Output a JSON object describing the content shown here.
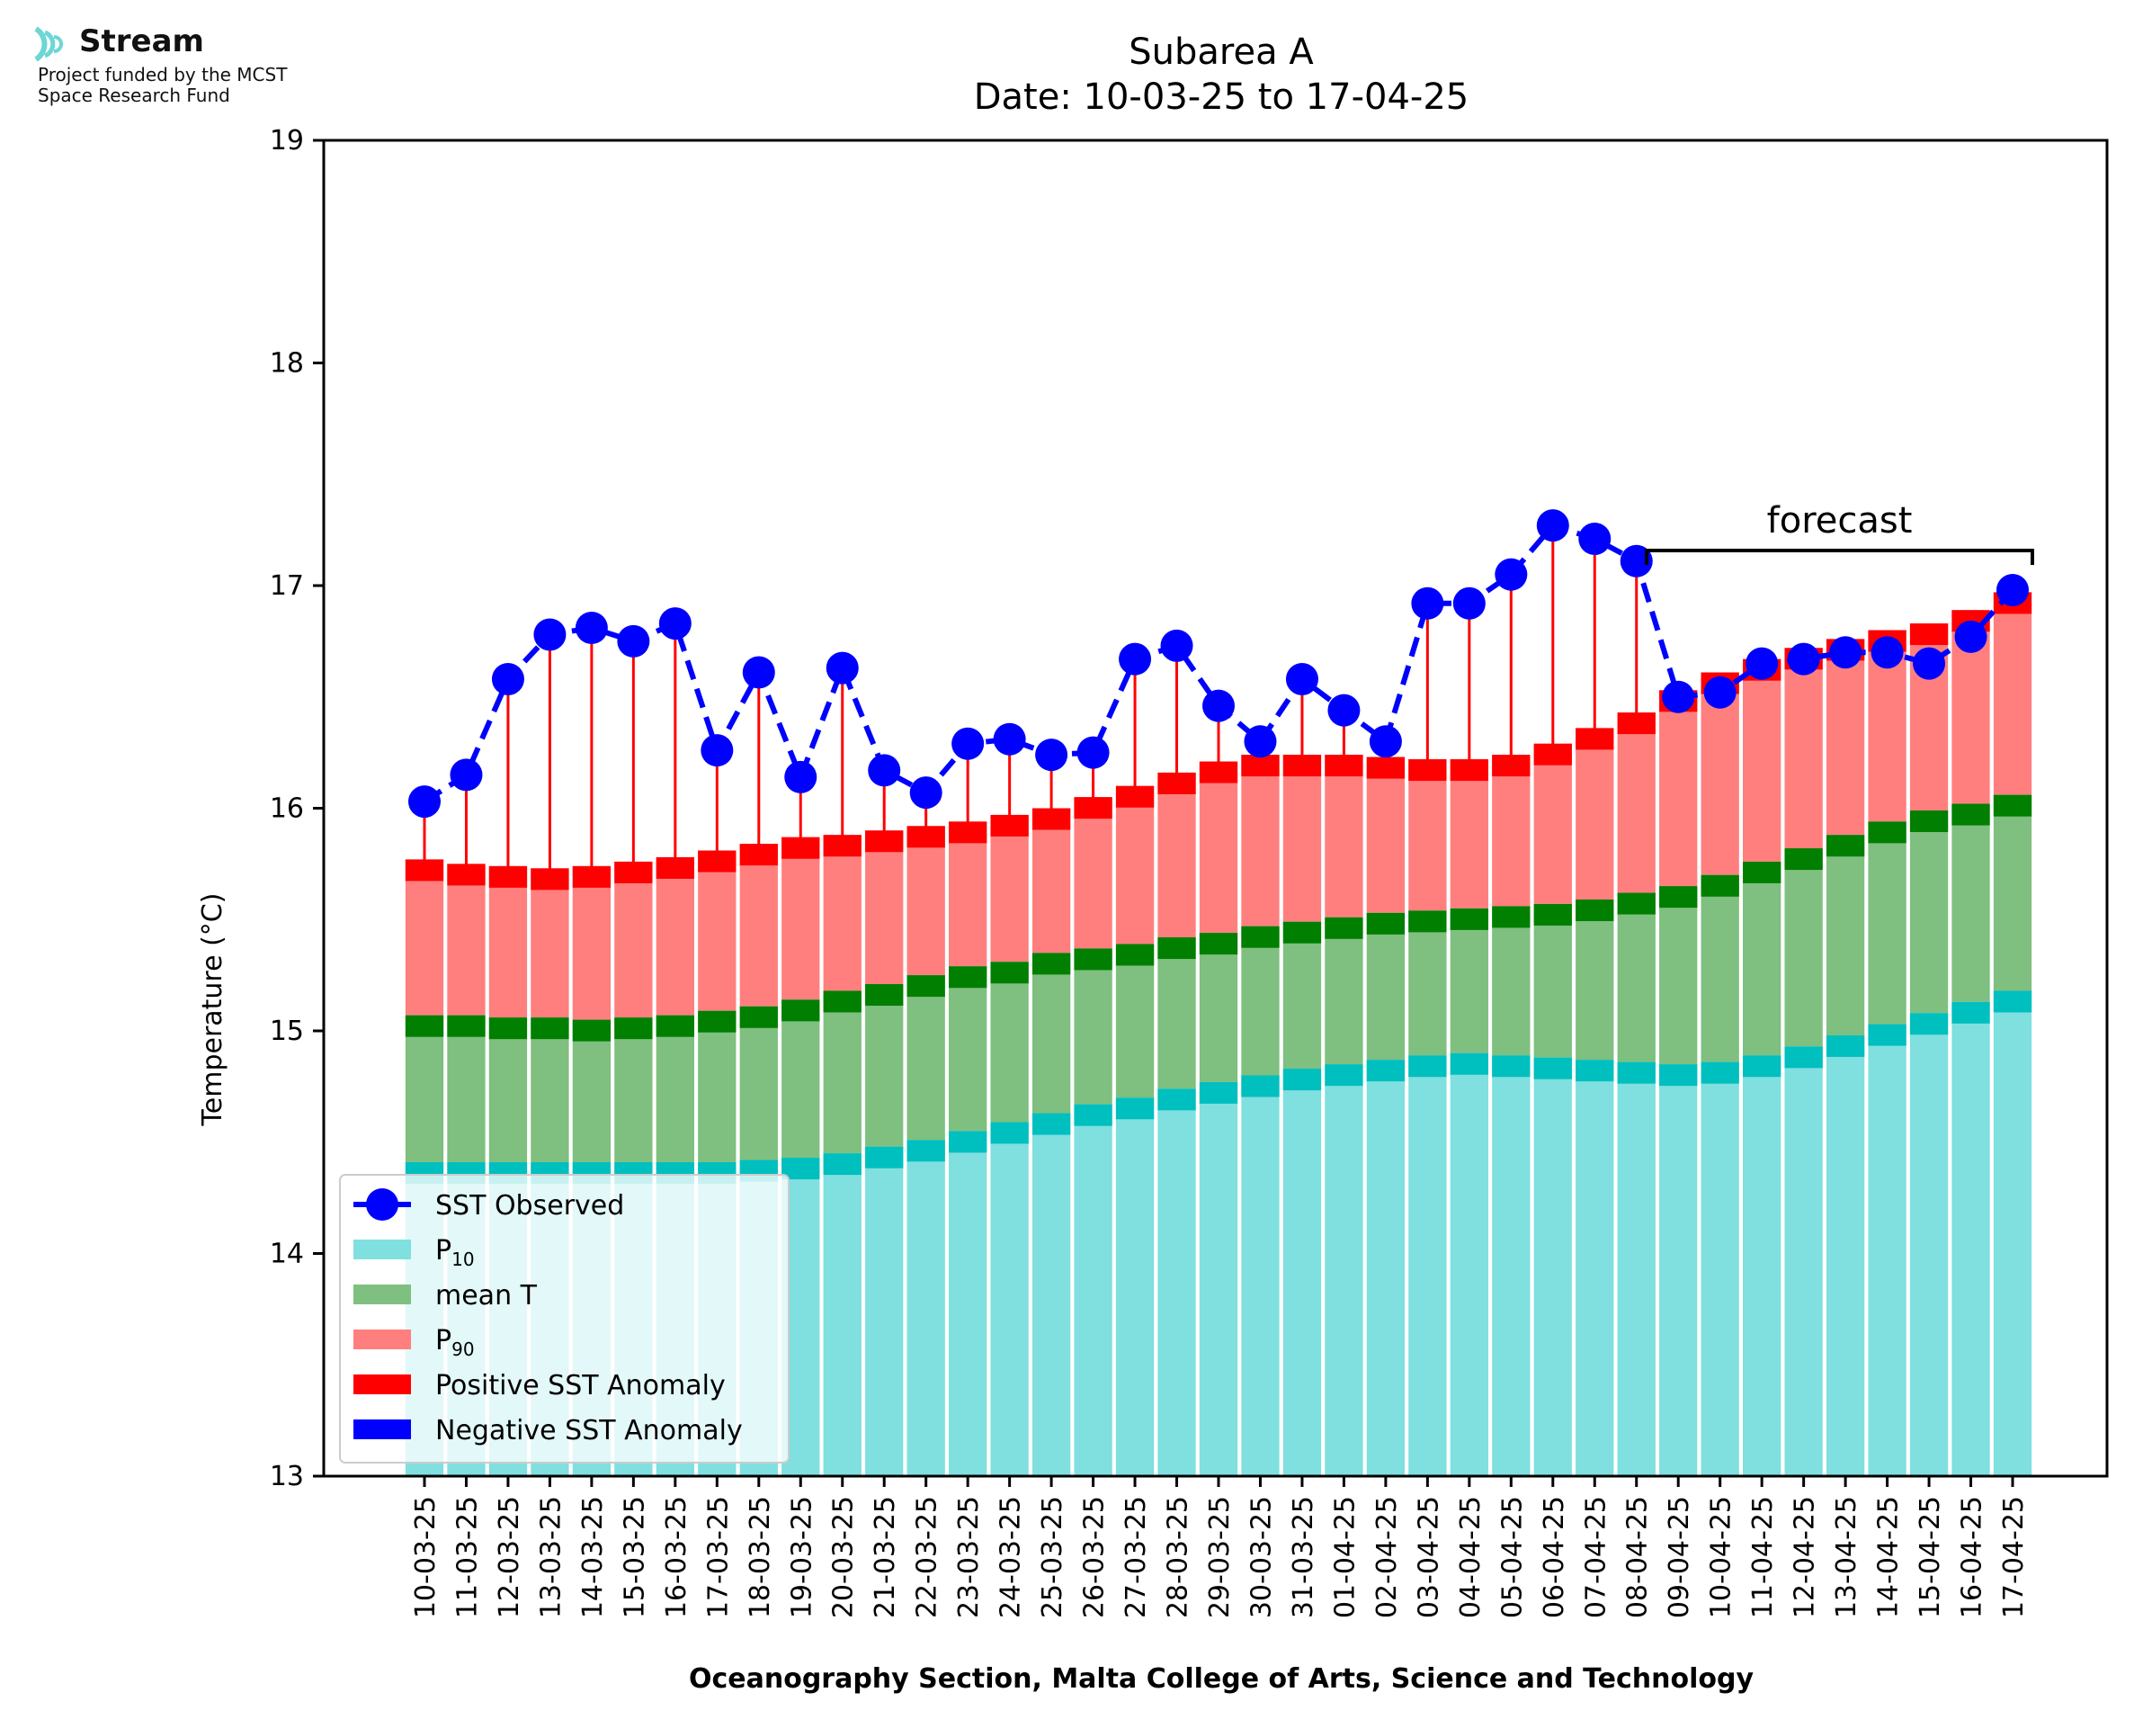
{
  "logo": {
    "brand": "Stream",
    "line1": "Project funded by the MCST",
    "line2": "Space Research Fund"
  },
  "chart_data": {
    "type": "bar",
    "title": "Subarea A",
    "subtitle": "Date: 10-03-25 to 17-04-25",
    "xlabel": "Oceanography Section, Malta College of Arts, Science and Technology",
    "ylabel": "Temperature (°C)",
    "ylim": [
      13,
      19
    ],
    "yticks": [
      13,
      14,
      15,
      16,
      17,
      18,
      19
    ],
    "categories": [
      "10-03-25",
      "11-03-25",
      "12-03-25",
      "13-03-25",
      "14-03-25",
      "15-03-25",
      "16-03-25",
      "17-03-25",
      "18-03-25",
      "19-03-25",
      "20-03-25",
      "21-03-25",
      "22-03-25",
      "23-03-25",
      "24-03-25",
      "25-03-25",
      "26-03-25",
      "27-03-25",
      "28-03-25",
      "29-03-25",
      "30-03-25",
      "31-03-25",
      "01-04-25",
      "02-04-25",
      "03-04-25",
      "04-04-25",
      "05-04-25",
      "06-04-25",
      "07-04-25",
      "08-04-25",
      "09-04-25",
      "10-04-25",
      "11-04-25",
      "12-04-25",
      "13-04-25",
      "14-04-25",
      "15-04-25",
      "16-04-25",
      "17-04-25"
    ],
    "series": [
      {
        "name": "SST Observed",
        "type": "line",
        "color": "#0000ff",
        "values": [
          16.03,
          16.15,
          16.58,
          16.78,
          16.81,
          16.75,
          16.83,
          16.26,
          16.61,
          16.14,
          16.63,
          16.17,
          16.07,
          16.29,
          16.31,
          16.24,
          16.25,
          16.67,
          16.73,
          16.46,
          16.3,
          16.58,
          16.44,
          16.3,
          16.92,
          16.92,
          17.05,
          17.27,
          17.21,
          17.11,
          16.5,
          16.52,
          16.65,
          16.67,
          16.7,
          16.7,
          16.65,
          16.77,
          16.98
        ]
      },
      {
        "name": "P10",
        "type": "bar",
        "color": "#80dfdf",
        "values": [
          14.41,
          14.41,
          14.41,
          14.41,
          14.41,
          14.41,
          14.41,
          14.41,
          14.42,
          14.43,
          14.45,
          14.48,
          14.51,
          14.55,
          14.59,
          14.63,
          14.67,
          14.7,
          14.74,
          14.77,
          14.8,
          14.83,
          14.85,
          14.87,
          14.89,
          14.9,
          14.89,
          14.88,
          14.87,
          14.86,
          14.85,
          14.86,
          14.89,
          14.93,
          14.98,
          15.03,
          15.08,
          15.13,
          15.18
        ]
      },
      {
        "name": "mean T",
        "type": "bar",
        "color": "#7fbf7f",
        "values": [
          15.07,
          15.07,
          15.06,
          15.06,
          15.05,
          15.06,
          15.07,
          15.09,
          15.11,
          15.14,
          15.18,
          15.21,
          15.25,
          15.29,
          15.31,
          15.35,
          15.37,
          15.39,
          15.42,
          15.44,
          15.47,
          15.49,
          15.51,
          15.53,
          15.54,
          15.55,
          15.56,
          15.57,
          15.59,
          15.62,
          15.65,
          15.7,
          15.76,
          15.82,
          15.88,
          15.94,
          15.99,
          16.02,
          16.06
        ]
      },
      {
        "name": "P90",
        "type": "bar",
        "color": "#ff7f7f",
        "values": [
          15.77,
          15.75,
          15.74,
          15.73,
          15.74,
          15.76,
          15.78,
          15.81,
          15.84,
          15.87,
          15.88,
          15.9,
          15.92,
          15.94,
          15.97,
          16.0,
          16.05,
          16.1,
          16.16,
          16.21,
          16.24,
          16.24,
          16.24,
          16.23,
          16.22,
          16.22,
          16.24,
          16.29,
          16.36,
          16.43,
          16.53,
          16.61,
          16.67,
          16.72,
          16.76,
          16.8,
          16.83,
          16.89,
          16.97
        ]
      }
    ],
    "band_colors": {
      "p10": "#00bfbf",
      "mean": "#007f00",
      "p90": "#ff0000"
    },
    "anomaly_colors": {
      "positive": "#ff0000",
      "negative": "#0000ff"
    },
    "forecast": {
      "label": "forecast",
      "start": "09-04-25",
      "end": "17-04-25"
    },
    "legend": {
      "placement": "lower-left",
      "entries": [
        {
          "label": "SST Observed",
          "kind": "line-marker",
          "color": "#0000ff"
        },
        {
          "label": "P",
          "sub": "10",
          "kind": "patch",
          "color": "#80dfdf"
        },
        {
          "label": "mean T",
          "kind": "patch",
          "color": "#7fbf7f"
        },
        {
          "label": "P",
          "sub": "90",
          "kind": "patch",
          "color": "#ff7f7f"
        },
        {
          "label": "Positive SST Anomaly",
          "kind": "patch",
          "color": "#ff0000"
        },
        {
          "label": "Negative SST Anomaly",
          "kind": "patch",
          "color": "#0000ff"
        }
      ]
    }
  }
}
